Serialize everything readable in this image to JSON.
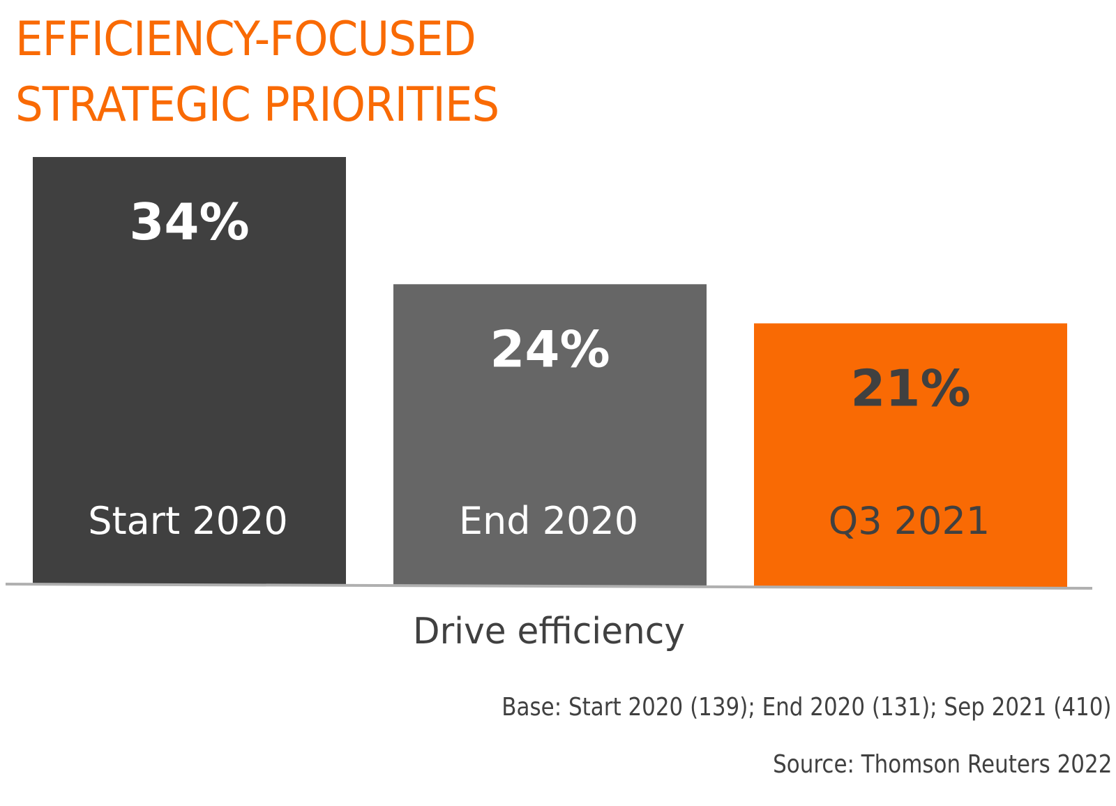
{
  "title_lines": [
    "EFFICIENCY-FOCUSED",
    "STRATEGIC PRIORITIES"
  ],
  "footnotes": {
    "base": "Base: Start 2020 (139); End 2020 (131); Sep 2021 (410)",
    "source": "Source: Thomson Reuters 2022"
  },
  "colors": {
    "accent": "#f96a04",
    "bar_dark": "#404040",
    "bar_mid": "#666666",
    "axis": "#b0b0b0",
    "text_dark": "#404040",
    "text_light": "#ffffff"
  },
  "chart_data": {
    "type": "bar",
    "title": "EFFICIENCY-FOCUSED STRATEGIC PRIORITIES",
    "categories": [
      "Start 2020",
      "End 2020",
      "Q3 2021"
    ],
    "values": [
      34,
      24,
      21
    ],
    "value_labels": [
      "34%",
      "24%",
      "21%"
    ],
    "bar_colors": [
      "#404040",
      "#666666",
      "#f96a04"
    ],
    "label_colors": [
      "#ffffff",
      "#ffffff",
      "#404040"
    ],
    "xlabel": "Drive efficiency",
    "ylabel": "",
    "ylim": [
      0,
      34
    ],
    "grid": false,
    "legend": "none"
  }
}
